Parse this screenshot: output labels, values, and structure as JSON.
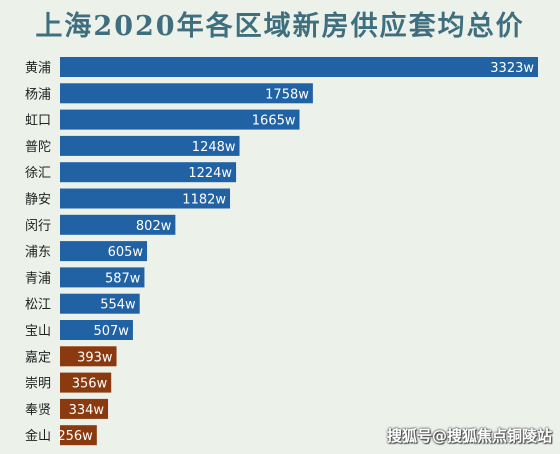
{
  "chart_data": {
    "type": "bar",
    "orientation": "horizontal",
    "title": "上海2020年各区域新房供应套均总价",
    "categories": [
      "黄浦",
      "杨浦",
      "虹口",
      "普陀",
      "徐汇",
      "静安",
      "闵行",
      "浦东",
      "青浦",
      "松江",
      "宝山",
      "嘉定",
      "崇明",
      "奉贤",
      "金山"
    ],
    "values": [
      3323,
      1758,
      1665,
      1248,
      1224,
      1182,
      802,
      605,
      587,
      554,
      507,
      393,
      356,
      334,
      256
    ],
    "value_labels": [
      "3323w",
      "1758w",
      "1665w",
      "1248w",
      "1224w",
      "1182w",
      "802w",
      "605w",
      "587w",
      "554w",
      "507w",
      "393w",
      "356w",
      "334w",
      "256w"
    ],
    "bar_colors": [
      "#2062a4",
      "#2062a4",
      "#2062a4",
      "#2062a4",
      "#2062a4",
      "#2062a4",
      "#2062a4",
      "#2062a4",
      "#2062a4",
      "#2062a4",
      "#2062a4",
      "#8b3a0f",
      "#8b3a0f",
      "#8b3a0f",
      "#8b3a0f"
    ],
    "xlim": [
      0,
      3323
    ],
    "grid": false,
    "legend": "none"
  },
  "watermark": "搜狐号@搜狐焦点铜陵站"
}
